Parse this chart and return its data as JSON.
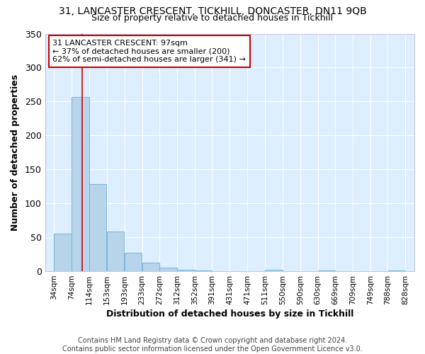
{
  "title": "31, LANCASTER CRESCENT, TICKHILL, DONCASTER, DN11 9QB",
  "subtitle": "Size of property relative to detached houses in Tickhill",
  "xlabel": "Distribution of detached houses by size in Tickhill",
  "ylabel": "Number of detached properties",
  "bar_left_edges": [
    34,
    74,
    114,
    153,
    193,
    233,
    272,
    312,
    352,
    391,
    431,
    471,
    511,
    550,
    590,
    630,
    669,
    709,
    749,
    788
  ],
  "bar_widths": [
    40,
    40,
    39,
    40,
    40,
    39,
    40,
    40,
    39,
    40,
    40,
    40,
    39,
    40,
    40,
    39,
    40,
    40,
    39,
    40
  ],
  "bar_heights": [
    55,
    257,
    128,
    58,
    27,
    13,
    5,
    2,
    1,
    0,
    0,
    0,
    2,
    0,
    0,
    1,
    0,
    0,
    0,
    1
  ],
  "x_tick_labels": [
    "34sqm",
    "74sqm",
    "114sqm",
    "153sqm",
    "193sqm",
    "233sqm",
    "272sqm",
    "312sqm",
    "352sqm",
    "391sqm",
    "431sqm",
    "471sqm",
    "511sqm",
    "550sqm",
    "590sqm",
    "630sqm",
    "669sqm",
    "709sqm",
    "749sqm",
    "788sqm",
    "828sqm"
  ],
  "x_tick_positions": [
    34,
    74,
    114,
    153,
    193,
    233,
    272,
    312,
    352,
    391,
    431,
    471,
    511,
    550,
    590,
    630,
    669,
    709,
    749,
    788,
    828
  ],
  "ylim": [
    0,
    350
  ],
  "yticks": [
    0,
    50,
    100,
    150,
    200,
    250,
    300,
    350
  ],
  "xlim": [
    14,
    848
  ],
  "bar_color": "#b8d4ea",
  "bar_edge_color": "#6aaed6",
  "background_color": "#ddeeff",
  "grid_color": "#ffffff",
  "vline_x": 97,
  "vline_color": "#cc0000",
  "annotation_line1": "31 LANCASTER CRESCENT: 97sqm",
  "annotation_line2": "← 37% of detached houses are smaller (200)",
  "annotation_line3": "62% of semi-detached houses are larger (341) →",
  "annotation_box_color": "#ffffff",
  "annotation_box_edge_color": "#cc0000",
  "footer_line1": "Contains HM Land Registry data © Crown copyright and database right 2024.",
  "footer_line2": "Contains public sector information licensed under the Open Government Licence v3.0.",
  "title_fontsize": 10,
  "subtitle_fontsize": 9,
  "annotation_fontsize": 8,
  "footer_fontsize": 7,
  "axis_label_fontsize": 9,
  "tick_fontsize": 7.5,
  "ytick_fontsize": 9
}
